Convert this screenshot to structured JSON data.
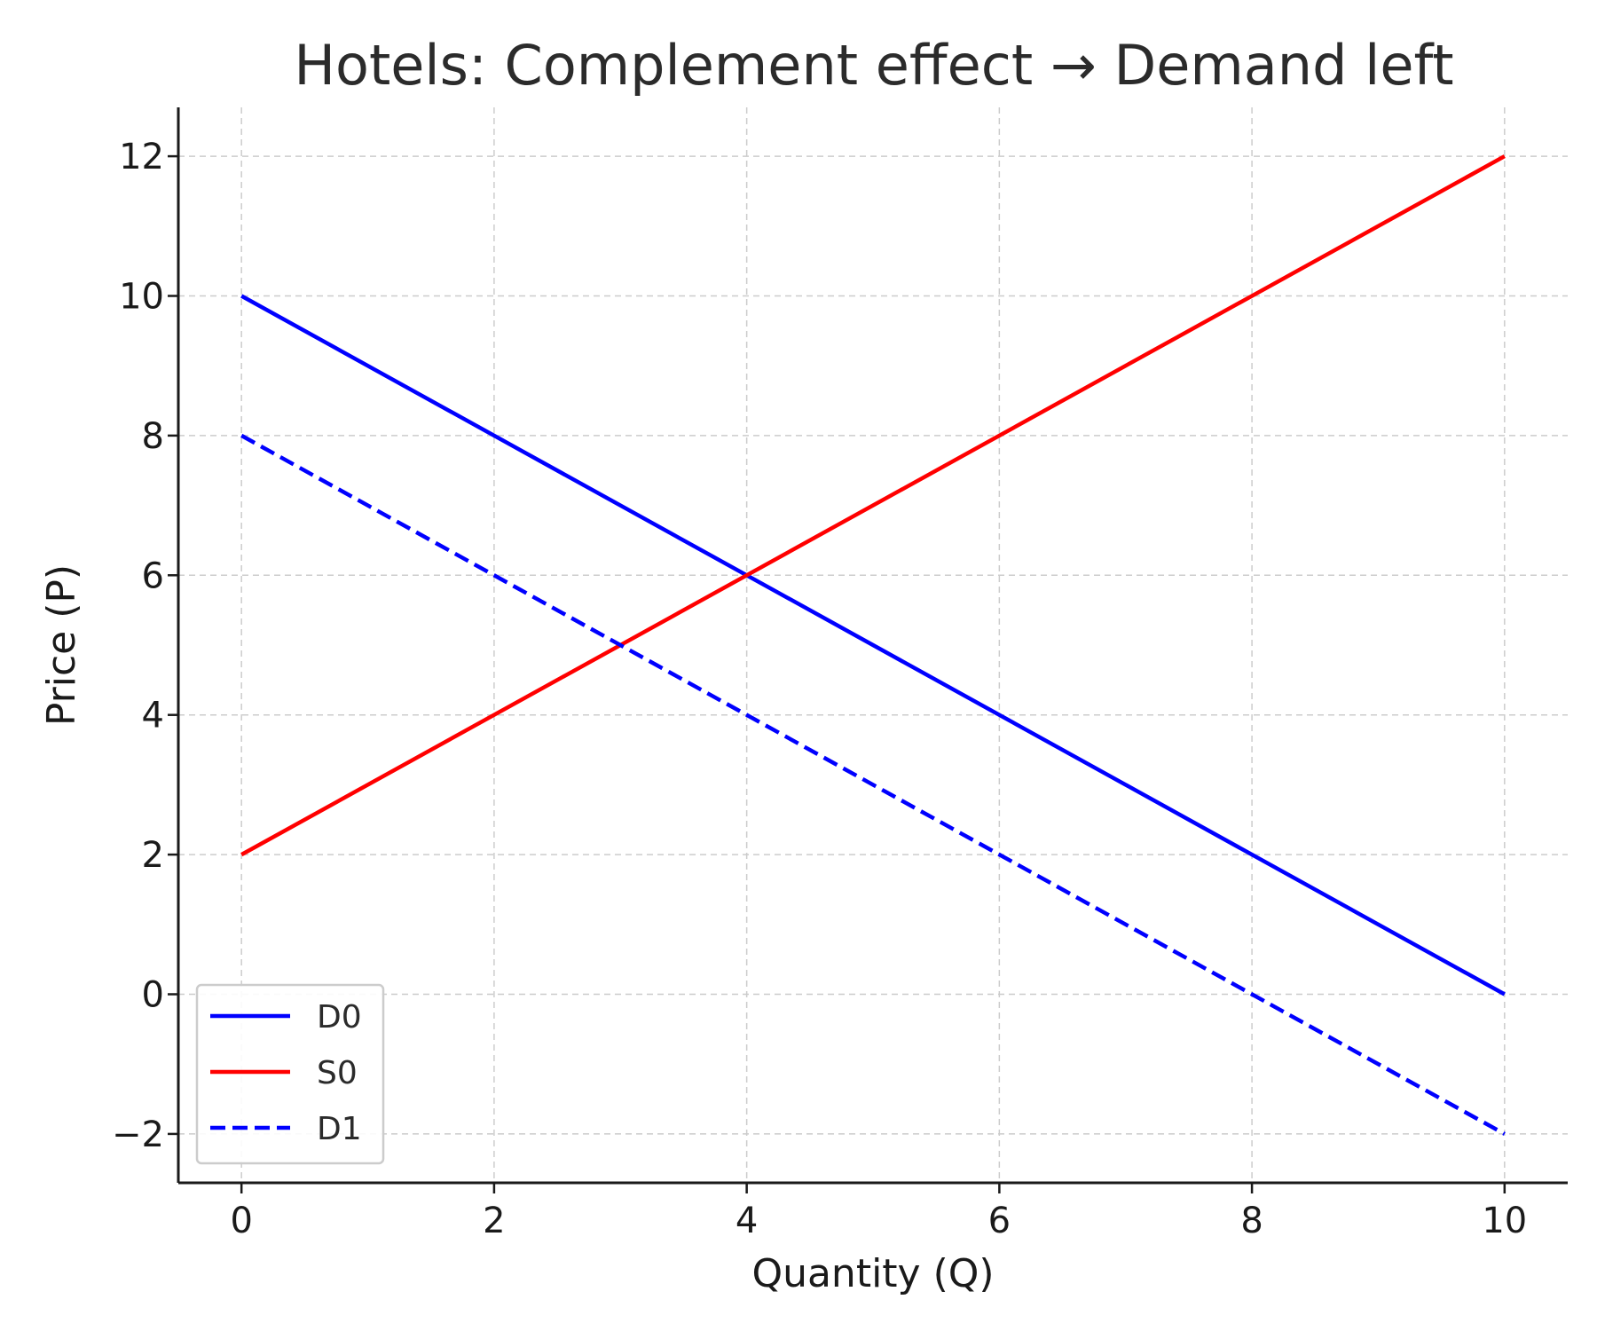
{
  "chart_data": {
    "type": "line",
    "title": "Hotels: Complement effect → Demand left",
    "xlabel": "Quantity (Q)",
    "ylabel": "Price (P)",
    "xlim": [
      -0.5,
      10.5
    ],
    "ylim": [
      -2.7,
      12.7
    ],
    "xticks": [
      0,
      2,
      4,
      6,
      8,
      10
    ],
    "yticks": [
      -2,
      0,
      2,
      4,
      6,
      8,
      10,
      12
    ],
    "xtick_labels": [
      "0",
      "2",
      "4",
      "6",
      "8",
      "10"
    ],
    "ytick_labels": [
      "−2",
      "0",
      "2",
      "4",
      "6",
      "8",
      "10",
      "12"
    ],
    "grid": true,
    "legend_position": "lower-left",
    "series": [
      {
        "name": "D0",
        "color": "#0000ff",
        "style": "solid",
        "x": [
          0,
          10
        ],
        "y": [
          10,
          0
        ]
      },
      {
        "name": "S0",
        "color": "#ff0000",
        "style": "solid",
        "x": [
          0,
          10
        ],
        "y": [
          2,
          12
        ]
      },
      {
        "name": "D1",
        "color": "#0000ff",
        "style": "dashed",
        "x": [
          0,
          10
        ],
        "y": [
          8,
          -2
        ]
      }
    ]
  }
}
